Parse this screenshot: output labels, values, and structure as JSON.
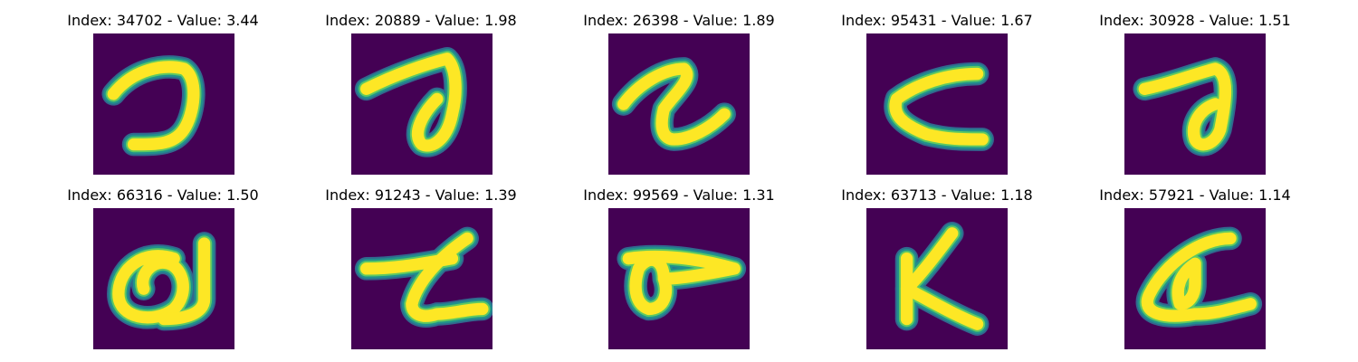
{
  "colors": {
    "background": "#440154",
    "mid_low": "#31688e",
    "mid": "#21918c",
    "mid_high": "#5ec962",
    "stroke": "#fde725"
  },
  "samples": [
    {
      "title": "Index: 34702 - Value: 3.44",
      "glyph": "reversed-c-glyph"
    },
    {
      "title": "Index: 20889 - Value: 1.98",
      "glyph": "loop-stroke-glyph"
    },
    {
      "title": "Index: 26398 - Value: 1.89",
      "glyph": "r-shape-glyph"
    },
    {
      "title": "Index: 95431 - Value: 1.67",
      "glyph": "open-angle-glyph"
    },
    {
      "title": "Index: 30928 - Value: 1.51",
      "glyph": "loop-stroke-glyph"
    },
    {
      "title": "Index: 66316 - Value: 1.50",
      "glyph": "a-shape-glyph"
    },
    {
      "title": "Index: 91243 - Value: 1.39",
      "glyph": "z-like-glyph"
    },
    {
      "title": "Index: 99569 - Value: 1.31",
      "glyph": "loop-pointer-glyph"
    },
    {
      "title": "Index: 63713 - Value: 1.18",
      "glyph": "k-shape-glyph"
    },
    {
      "title": "Index: 57921 - Value: 1.14",
      "glyph": "a-curl-glyph"
    }
  ]
}
